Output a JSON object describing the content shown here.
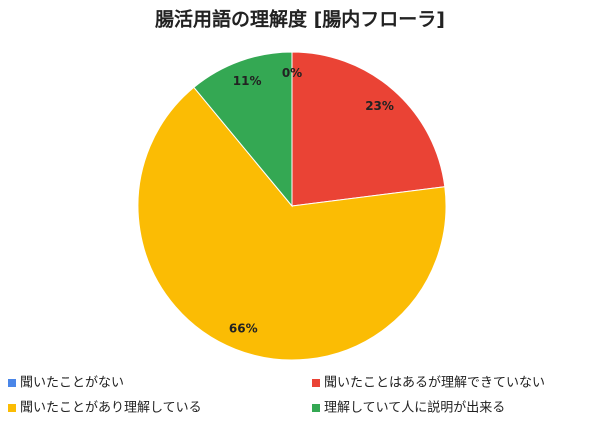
{
  "chart_data": {
    "type": "pie",
    "title": "腸活用語の理解度 [腸内フローラ]",
    "categories": [
      "聞いたことがない",
      "聞いたことはあるが理解できていない",
      "聞いたことがあり理解している",
      "理解していて人に説明が出来る"
    ],
    "values": [
      0,
      23,
      66,
      11
    ],
    "value_labels": [
      "0%",
      "23%",
      "66%",
      "11%"
    ],
    "colors": [
      "#4a86e8",
      "#ea4335",
      "#fbbc04",
      "#34a853"
    ]
  }
}
